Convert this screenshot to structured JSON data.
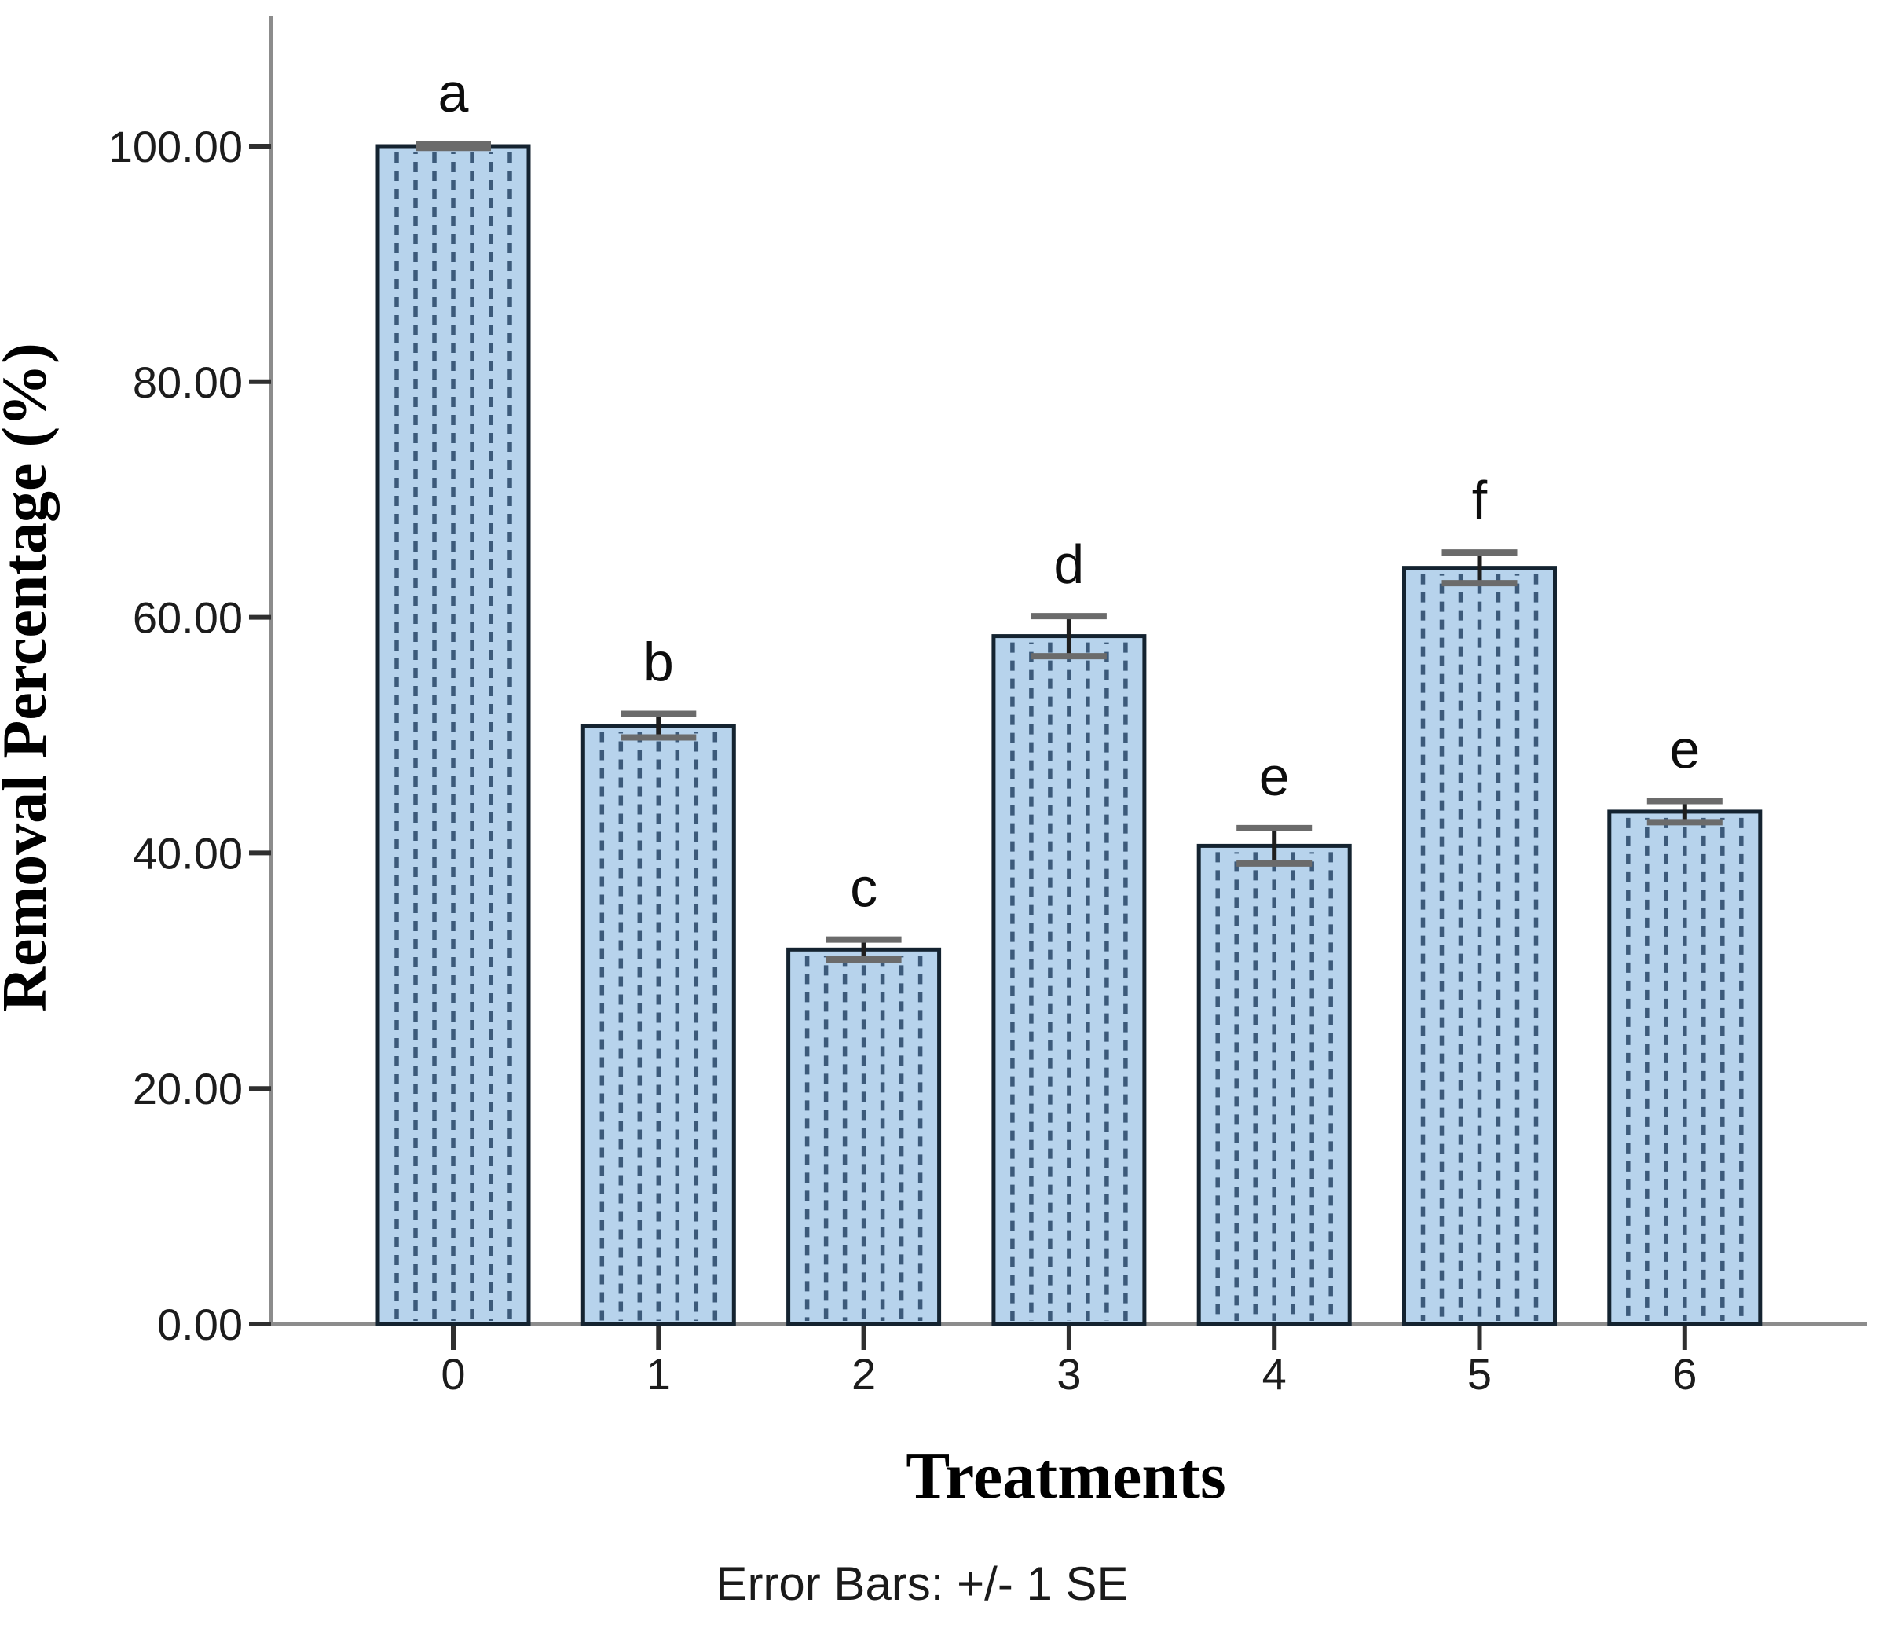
{
  "figure": {
    "background": "#ffffff"
  },
  "chart_data": {
    "type": "bar",
    "title": "",
    "xlabel": "Treatments",
    "ylabel": "Removal Percentage (%)",
    "caption": "Error Bars: +/- 1 SE",
    "categories": [
      "0",
      "1",
      "2",
      "3",
      "4",
      "5",
      "6"
    ],
    "values": [
      100.0,
      50.8,
      31.8,
      58.4,
      40.6,
      64.2,
      43.5
    ],
    "standard_errors": [
      0.15,
      1.0,
      0.85,
      1.7,
      1.5,
      1.3,
      0.9
    ],
    "significance_letters": [
      "a",
      "b",
      "c",
      "d",
      "e",
      "f",
      "e"
    ],
    "ylim": [
      0,
      100
    ],
    "yticks": [
      0,
      20,
      40,
      60,
      80,
      100
    ],
    "ytick_labels": [
      "0.00",
      "20.00",
      "40.00",
      "60.00",
      "80.00",
      "100.00"
    ],
    "grid": false,
    "legend": "none",
    "colors": {
      "bar_fill": "#b7d3ec",
      "bar_hatch": "#3c5a7a",
      "bar_outline": "#142330",
      "error_bar_stem": "#1e1e1e",
      "error_bar_cap": "#6b6b6b",
      "axis_line": "#8c8c8c",
      "tick_mark": "#2f2f2f",
      "text": "#111111"
    }
  }
}
